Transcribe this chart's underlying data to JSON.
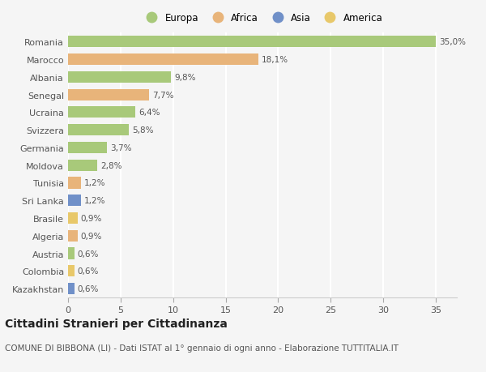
{
  "categories": [
    "Romania",
    "Marocco",
    "Albania",
    "Senegal",
    "Ucraina",
    "Svizzera",
    "Germania",
    "Moldova",
    "Tunisia",
    "Sri Lanka",
    "Brasile",
    "Algeria",
    "Austria",
    "Colombia",
    "Kazakhstan"
  ],
  "values": [
    35.0,
    18.1,
    9.8,
    7.7,
    6.4,
    5.8,
    3.7,
    2.8,
    1.2,
    1.2,
    0.9,
    0.9,
    0.6,
    0.6,
    0.6
  ],
  "bar_colors": [
    "#a8c97a",
    "#e8b47a",
    "#a8c97a",
    "#e8b47a",
    "#a8c97a",
    "#a8c97a",
    "#a8c97a",
    "#a8c97a",
    "#e8b47a",
    "#7090c8",
    "#e8c86a",
    "#e8b47a",
    "#a8c97a",
    "#e8c86a",
    "#7090c8"
  ],
  "labels": [
    "35,0%",
    "18,1%",
    "9,8%",
    "7,7%",
    "6,4%",
    "5,8%",
    "3,7%",
    "2,8%",
    "1,2%",
    "1,2%",
    "0,9%",
    "0,9%",
    "0,6%",
    "0,6%",
    "0,6%"
  ],
  "legend": [
    "Europa",
    "Africa",
    "Asia",
    "America"
  ],
  "legend_colors": [
    "#a8c97a",
    "#e8b47a",
    "#7090c8",
    "#e8c86a"
  ],
  "title": "Cittadini Stranieri per Cittadinanza",
  "subtitle": "COMUNE DI BIBBONA (LI) - Dati ISTAT al 1° gennaio di ogni anno - Elaborazione TUTTITALIA.IT",
  "xlim": [
    0,
    37
  ],
  "xticks": [
    0,
    5,
    10,
    15,
    20,
    25,
    30,
    35
  ],
  "background_color": "#f5f5f5",
  "plot_background": "#f5f5f5",
  "grid_color": "#ffffff",
  "bar_height": 0.65,
  "title_fontsize": 10,
  "subtitle_fontsize": 7.5,
  "tick_fontsize": 8,
  "bar_fontsize": 7.5,
  "legend_fontsize": 8.5
}
